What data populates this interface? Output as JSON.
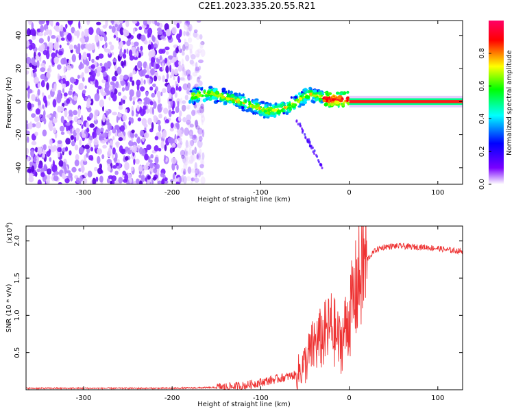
{
  "figure": {
    "title": "C2E1.2023.335.20.55.R21"
  },
  "chart_data": [
    {
      "type": "heatmap",
      "title": "C2E1.2023.335.20.55.R21",
      "xlabel": "Height of straight line (km)",
      "ylabel": "Frequency (Hz)",
      "xlim": [
        -365,
        128
      ],
      "ylim": [
        -50,
        49
      ],
      "x_ticks": [
        "-300",
        "-200",
        "-100",
        "0",
        "100"
      ],
      "y_ticks": [
        "40",
        "20",
        "0",
        "-20",
        "-40"
      ],
      "colorbar": {
        "label": "Normalized spectral amplitude",
        "range": [
          0.0,
          1.0
        ],
        "ticks": [
          "0.0",
          "0.2",
          "0.4",
          "0.6",
          "0.8"
        ],
        "colors": [
          "#ffffff",
          "#6600ff",
          "#0000ff",
          "#00ffff",
          "#00ff00",
          "#ffff00",
          "#ff0000",
          "#ff0066"
        ]
      },
      "regions": [
        {
          "name": "noise",
          "x_range": [
            -365,
            -180
          ],
          "freq_range": [
            -50,
            49
          ],
          "amplitude": 0.3
        },
        {
          "name": "signal-onset",
          "x_range": [
            -180,
            0
          ],
          "freq_center": [
            3,
            5,
            2,
            -2,
            -6,
            -3,
            5,
            1,
            2
          ],
          "amplitude": 0.5
        },
        {
          "name": "steady-signal",
          "x_range": [
            0,
            128
          ],
          "freq_center": 0,
          "amplitude": 0.95
        }
      ]
    },
    {
      "type": "line",
      "xlabel": "Height of straight line (km)",
      "ylabel": "SNR (10 * v/v)",
      "y_multiplier": "(x10",
      "y_multiplier_exp": "4",
      "xlim": [
        -365,
        128
      ],
      "ylim": [
        0,
        2.2
      ],
      "x_ticks": [
        "-300",
        "-200",
        "-100",
        "0",
        "100"
      ],
      "y_ticks": [
        "0.5",
        "1.0",
        "1.5",
        "2.0"
      ],
      "color": "#ee3333",
      "series": [
        {
          "x": [
            -365,
            -300,
            -200,
            -150,
            -120,
            -100,
            -80,
            -60,
            -50,
            -40,
            -30,
            -20,
            -10,
            -5,
            0,
            5,
            10,
            15,
            20,
            30,
            40,
            50,
            60,
            70,
            80,
            90,
            100,
            110,
            128
          ],
          "y": [
            0.02,
            0.02,
            0.02,
            0.03,
            0.05,
            0.1,
            0.15,
            0.2,
            0.35,
            0.6,
            0.7,
            0.85,
            0.6,
            0.8,
            1.0,
            1.2,
            1.45,
            1.65,
            1.75,
            1.88,
            1.92,
            1.93,
            1.93,
            1.92,
            1.92,
            1.91,
            1.9,
            1.88,
            1.86
          ]
        }
      ]
    }
  ]
}
